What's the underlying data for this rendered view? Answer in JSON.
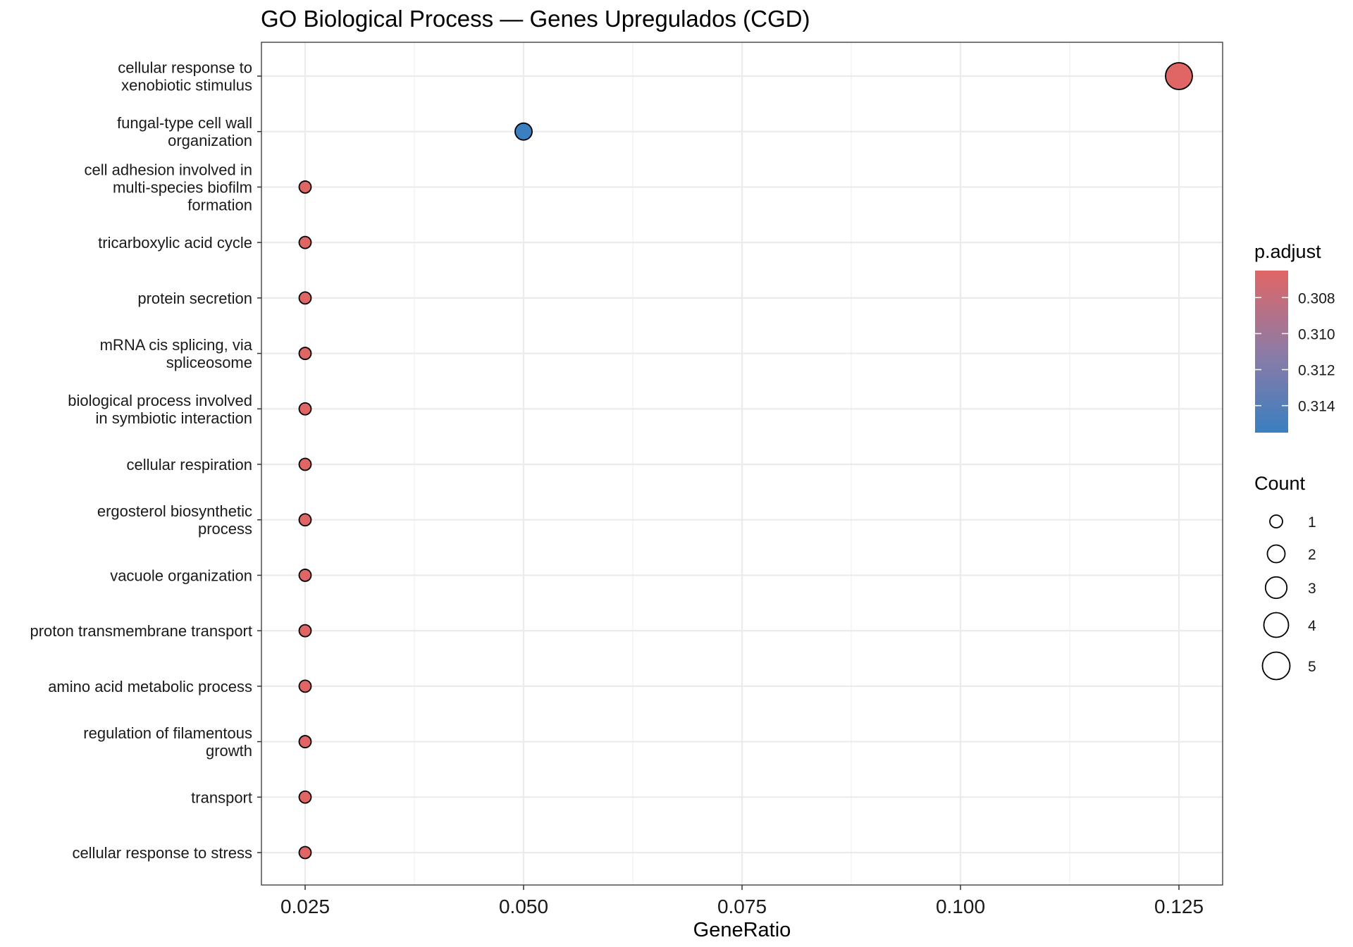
{
  "chart_data": {
    "type": "scatter",
    "title": "GO Biological Process — Genes Upregulados (CGD)",
    "xlabel": "GeneRatio",
    "ylabel": "",
    "xlim": [
      0.02,
      0.13
    ],
    "x_ticks": [
      "0.025",
      "0.050",
      "0.075",
      "0.100",
      "0.125"
    ],
    "x_tick_values": [
      0.025,
      0.05,
      0.075,
      0.1,
      0.125
    ],
    "grid": true,
    "legend_position": "right",
    "points": [
      {
        "term": [
          "cellular response to",
          "xenobiotic stimulus"
        ],
        "gene_ratio": 0.125,
        "count": 5,
        "p_adjust": 0.3065
      },
      {
        "term": [
          "fungal-type cell wall",
          "organization"
        ],
        "gene_ratio": 0.05,
        "count": 2,
        "p_adjust": 0.3155
      },
      {
        "term": [
          "cell adhesion involved in",
          "multi-species biofilm",
          "formation"
        ],
        "gene_ratio": 0.025,
        "count": 1,
        "p_adjust": 0.3065
      },
      {
        "term": [
          "tricarboxylic acid cycle"
        ],
        "gene_ratio": 0.025,
        "count": 1,
        "p_adjust": 0.3065
      },
      {
        "term": [
          "protein secretion"
        ],
        "gene_ratio": 0.025,
        "count": 1,
        "p_adjust": 0.3065
      },
      {
        "term": [
          "mRNA cis splicing, via",
          "spliceosome"
        ],
        "gene_ratio": 0.025,
        "count": 1,
        "p_adjust": 0.3065
      },
      {
        "term": [
          "biological process involved",
          "in symbiotic interaction"
        ],
        "gene_ratio": 0.025,
        "count": 1,
        "p_adjust": 0.3065
      },
      {
        "term": [
          "cellular respiration"
        ],
        "gene_ratio": 0.025,
        "count": 1,
        "p_adjust": 0.3065
      },
      {
        "term": [
          "ergosterol biosynthetic",
          "process"
        ],
        "gene_ratio": 0.025,
        "count": 1,
        "p_adjust": 0.3065
      },
      {
        "term": [
          "vacuole organization"
        ],
        "gene_ratio": 0.025,
        "count": 1,
        "p_adjust": 0.3065
      },
      {
        "term": [
          "proton transmembrane transport"
        ],
        "gene_ratio": 0.025,
        "count": 1,
        "p_adjust": 0.3065
      },
      {
        "term": [
          "amino acid metabolic process"
        ],
        "gene_ratio": 0.025,
        "count": 1,
        "p_adjust": 0.3065
      },
      {
        "term": [
          "regulation of filamentous",
          "growth"
        ],
        "gene_ratio": 0.025,
        "count": 1,
        "p_adjust": 0.3065
      },
      {
        "term": [
          "transport"
        ],
        "gene_ratio": 0.025,
        "count": 1,
        "p_adjust": 0.3065
      },
      {
        "term": [
          "cellular response to stress"
        ],
        "gene_ratio": 0.025,
        "count": 1,
        "p_adjust": 0.3065
      }
    ],
    "color_legend": {
      "title": "p.adjust",
      "range": [
        0.3065,
        0.3155
      ],
      "ticks": [
        "0.308",
        "0.310",
        "0.312",
        "0.314"
      ],
      "tick_values": [
        0.308,
        0.31,
        0.312,
        0.314
      ],
      "low_color": "#E06666",
      "high_color": "#3A7FC0"
    },
    "size_legend": {
      "title": "Count",
      "labels": [
        "1",
        "2",
        "3",
        "4",
        "5"
      ],
      "values": [
        1,
        2,
        3,
        4,
        5
      ]
    },
    "colors": {
      "grid": "#ebebeb",
      "panel_border": "#333333",
      "point_stroke": "#000000"
    }
  }
}
